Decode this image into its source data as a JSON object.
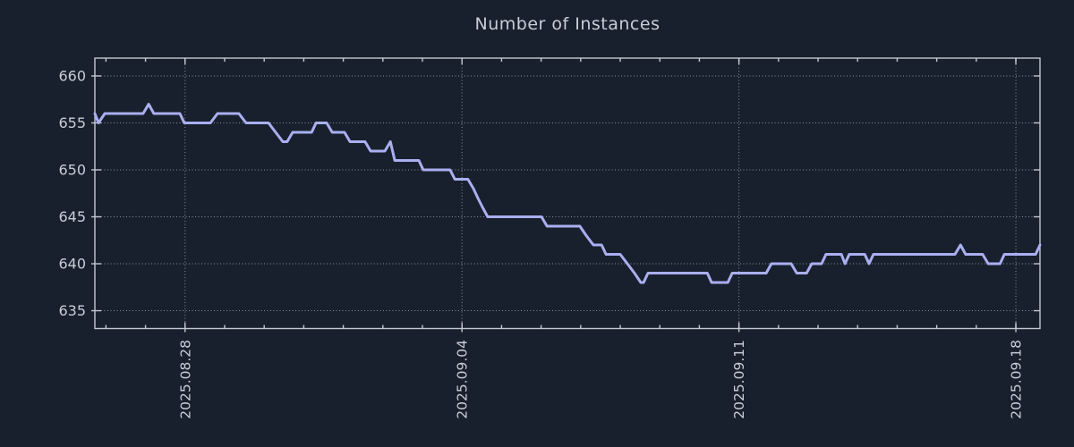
{
  "figure": {
    "background_color": "#18202d",
    "line_color": "#a9aff0",
    "grid_color": "#989ea8",
    "border_color": "#c4c8d0",
    "text_color": "#c9cdd6"
  },
  "chart_data": {
    "type": "line",
    "title": "Number of Instances",
    "xlabel": "",
    "ylabel": "",
    "grid": true,
    "legend": "none",
    "ylim": [
      633.1,
      661.9
    ],
    "xlim": [
      0,
      23.89
    ],
    "x_unit": "days",
    "yticks": [
      635,
      640,
      645,
      650,
      655,
      660
    ],
    "xticks": [
      {
        "pos": 2.28,
        "label": "2025.08.28"
      },
      {
        "pos": 9.28,
        "label": "2025.09.04"
      },
      {
        "pos": 16.28,
        "label": "2025.09.11"
      },
      {
        "pos": 23.28,
        "label": "2025.09.18"
      }
    ],
    "x_minor_first": 0.28,
    "x_minor_step": 1,
    "series": [
      {
        "name": "instances",
        "x": [
          0.0,
          0.09,
          0.25,
          1.22,
          1.36,
          1.49,
          2.15,
          2.26,
          2.92,
          3.1,
          3.64,
          3.82,
          4.39,
          4.57,
          4.75,
          4.86,
          5.0,
          5.48,
          5.59,
          5.86,
          6.0,
          6.31,
          6.45,
          6.83,
          6.97,
          7.33,
          7.47,
          7.58,
          8.19,
          8.3,
          8.98,
          9.1,
          9.43,
          9.57,
          9.68,
          9.8,
          9.93,
          11.29,
          11.43,
          12.26,
          12.42,
          12.6,
          12.81,
          12.92,
          13.28,
          13.46,
          13.64,
          13.8,
          13.87,
          13.98,
          15.48,
          15.59,
          16.0,
          16.11,
          16.97,
          17.1,
          17.6,
          17.74,
          17.99,
          18.12,
          18.37,
          18.48,
          18.87,
          18.96,
          19.07,
          19.46,
          19.57,
          19.68,
          21.74,
          21.88,
          22.01,
          22.44,
          22.58,
          22.88,
          22.99,
          23.78,
          23.89
        ],
        "y": [
          656,
          655,
          656,
          656,
          657,
          656,
          656,
          655,
          655,
          656,
          656,
          655,
          655,
          654,
          653,
          653,
          654,
          654,
          655,
          655,
          654,
          654,
          653,
          653,
          652,
          652,
          653,
          651,
          651,
          650,
          650,
          649,
          649,
          648,
          647,
          646,
          645,
          645,
          644,
          644,
          643,
          642,
          642,
          641,
          641,
          640,
          639,
          638,
          638,
          639,
          639,
          638,
          638,
          639,
          639,
          640,
          640,
          639,
          639,
          640,
          640,
          641,
          641,
          640,
          641,
          641,
          640,
          641,
          641,
          642,
          641,
          641,
          640,
          640,
          641,
          641,
          642
        ]
      }
    ]
  }
}
